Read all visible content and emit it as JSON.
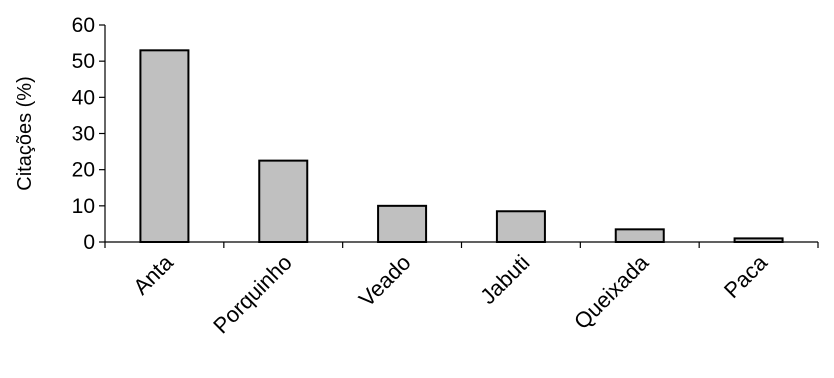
{
  "chart_data": {
    "type": "bar",
    "categories": [
      "Anta",
      "Porquinho",
      "Veado",
      "Jabuti",
      "Queixada",
      "Paca"
    ],
    "values": [
      53,
      22.5,
      10,
      8.5,
      3.5,
      1
    ],
    "title": "",
    "xlabel": "",
    "ylabel": "Citações (%)",
    "ylim": [
      0,
      60
    ],
    "yticks": [
      0,
      10,
      20,
      30,
      40,
      50,
      60
    ],
    "grid": false,
    "legend": "none",
    "colors": {
      "bar_fill": "#c0c0c0",
      "bar_stroke": "#000000",
      "axis": "#000000"
    }
  }
}
